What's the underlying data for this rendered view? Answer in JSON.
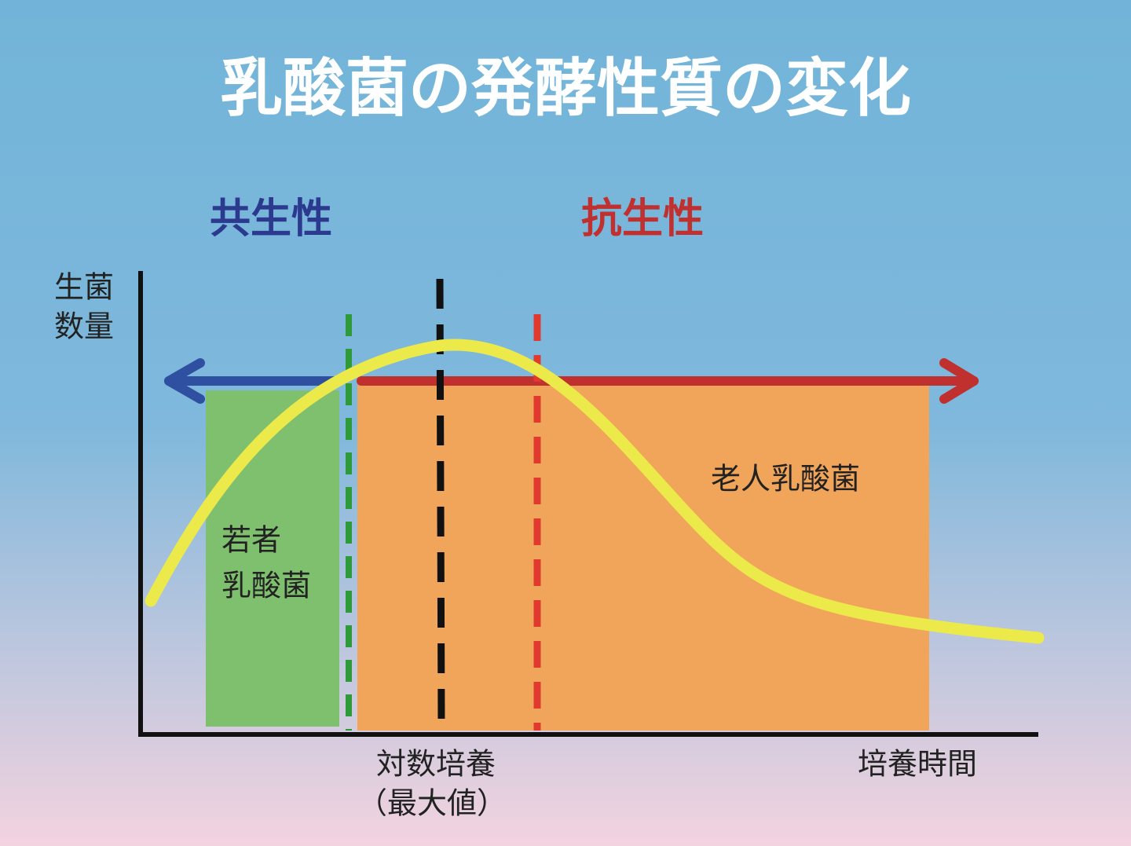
{
  "title": "乳酸菌の発酵性質の変化",
  "phases": [
    {
      "label": "共生性"
    },
    {
      "label": "抗生性"
    }
  ],
  "y_axis": {
    "label_lines": [
      "生菌",
      "数量"
    ]
  },
  "x_axis": {
    "peak_label_lines": [
      "対数培養",
      "（最大値）"
    ],
    "end_label": "培養時間"
  },
  "regions": [
    {
      "label_lines": [
        "若者",
        "乳酸菌"
      ]
    },
    {
      "label_lines": [
        "老人乳酸菌"
      ]
    }
  ]
}
